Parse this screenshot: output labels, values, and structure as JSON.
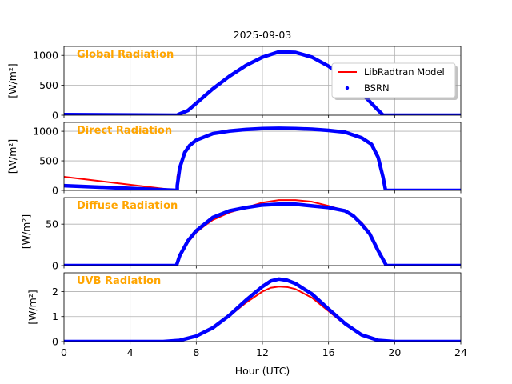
{
  "figure": {
    "title": "2025-09-03",
    "xlabel": "Hour (UTC)",
    "xticks": [
      0,
      4,
      8,
      12,
      16,
      20,
      24
    ],
    "xlim": [
      0,
      24
    ],
    "legend": {
      "placement": "top-right of first panel",
      "entries": [
        {
          "label": "LibRadtran Model",
          "color": "#ff0000",
          "kind": "line"
        },
        {
          "label": "BSRN",
          "color": "#0000ff",
          "kind": "marker"
        }
      ]
    },
    "annotation_color": "#ffa500",
    "grid": true
  },
  "chart_data": [
    {
      "type": "line",
      "title": "Global Radiation",
      "ylabel": "[W/m²]",
      "ylim": [
        0,
        1150
      ],
      "yticks": [
        0,
        500,
        1000
      ],
      "x": [
        6.9,
        7.5,
        8,
        9,
        10,
        11,
        12,
        13,
        14,
        15,
        16,
        17,
        18,
        18.8,
        19.3
      ],
      "series": [
        {
          "name": "LibRadtran Model",
          "color": "#ff0000",
          "values": [
            10,
            80,
            200,
            430,
            640,
            820,
            960,
            1050,
            1050,
            960,
            810,
            610,
            360,
            140,
            0
          ]
        },
        {
          "name": "BSRN",
          "color": "#0000ff",
          "values": [
            10,
            80,
            200,
            440,
            650,
            830,
            970,
            1060,
            1050,
            970,
            820,
            620,
            370,
            140,
            0
          ]
        }
      ]
    },
    {
      "type": "line",
      "title": "Direct Radiation",
      "ylabel": "[W/m²]",
      "ylim": [
        0,
        1150
      ],
      "yticks": [
        0,
        500,
        1000
      ],
      "x": [
        6.85,
        7.0,
        7.3,
        7.6,
        8,
        9,
        10,
        11,
        12,
        13,
        14,
        15,
        16,
        17,
        18,
        18.6,
        19.0,
        19.3,
        19.45
      ],
      "series": [
        {
          "name": "LibRadtran Model",
          "color": "#ff0000",
          "values": [
            230,
            420,
            640,
            760,
            850,
            950,
            1000,
            1025,
            1040,
            1045,
            1040,
            1030,
            1010,
            980,
            890,
            780,
            560,
            220,
            0
          ]
        },
        {
          "name": "BSRN",
          "color": "#0000ff",
          "values": [
            80,
            380,
            640,
            760,
            850,
            960,
            1005,
            1030,
            1045,
            1050,
            1045,
            1035,
            1015,
            985,
            890,
            780,
            560,
            220,
            0
          ]
        }
      ]
    },
    {
      "type": "line",
      "title": "Diffuse Radiation",
      "ylabel": "[W/m²]",
      "ylim": [
        0,
        82
      ],
      "yticks": [
        0,
        50
      ],
      "x": [
        6.8,
        7,
        7.5,
        8,
        8.5,
        9,
        10,
        11,
        12,
        13,
        14,
        15,
        16,
        17,
        17.5,
        18,
        18.5,
        19,
        19.5
      ],
      "series": [
        {
          "name": "LibRadtran Model",
          "color": "#ff0000",
          "values": [
            0,
            10,
            28,
            40,
            48,
            55,
            64,
            70,
            76,
            79,
            79,
            77,
            72,
            66,
            60,
            52,
            40,
            20,
            0
          ]
        },
        {
          "name": "BSRN",
          "color": "#0000ff",
          "values": [
            0,
            12,
            30,
            42,
            50,
            58,
            66,
            70,
            73,
            74,
            74,
            72,
            70,
            66,
            60,
            50,
            38,
            18,
            0
          ]
        }
      ]
    },
    {
      "type": "line",
      "title": "UVB Radiation",
      "ylabel": "[W/m²]",
      "ylim": [
        0,
        2.75
      ],
      "yticks": [
        0,
        1,
        2
      ],
      "x": [
        6,
        7,
        8,
        9,
        10,
        11,
        12,
        12.5,
        13,
        13.5,
        14,
        15,
        16,
        17,
        18,
        19,
        20
      ],
      "series": [
        {
          "name": "LibRadtran Model",
          "color": "#ff0000",
          "values": [
            0,
            0.05,
            0.22,
            0.55,
            1.02,
            1.55,
            2.0,
            2.15,
            2.2,
            2.18,
            2.1,
            1.75,
            1.22,
            0.68,
            0.25,
            0.05,
            0
          ]
        },
        {
          "name": "BSRN",
          "color": "#0000ff",
          "values": [
            0,
            0.05,
            0.22,
            0.55,
            1.05,
            1.65,
            2.2,
            2.42,
            2.5,
            2.45,
            2.32,
            1.9,
            1.3,
            0.72,
            0.27,
            0.05,
            0
          ]
        }
      ]
    }
  ]
}
